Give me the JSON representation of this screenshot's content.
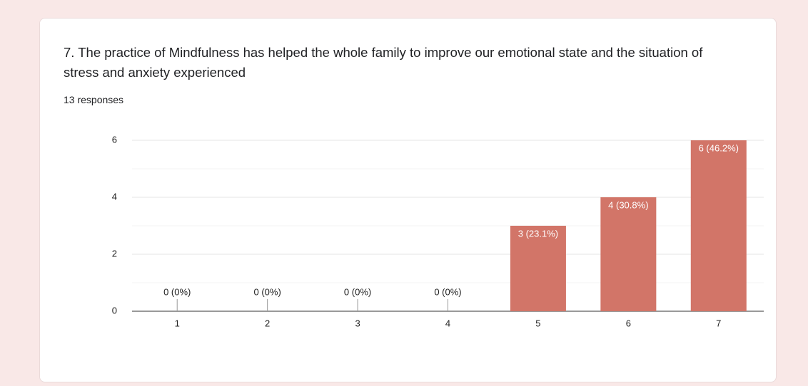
{
  "chart_data": {
    "type": "bar",
    "title": "7. The practice of Mindfulness has helped the whole family to improve our emotional state and the situation of stress and anxiety experienced",
    "subtitle": "13 responses",
    "categories": [
      "1",
      "2",
      "3",
      "4",
      "5",
      "6",
      "7"
    ],
    "values": [
      0,
      0,
      0,
      0,
      3,
      4,
      6
    ],
    "value_labels": [
      "0 (0%)",
      "0 (0%)",
      "0 (0%)",
      "0 (0%)",
      "3 (23.1%)",
      "4 (30.8%)",
      "6 (46.2%)"
    ],
    "color": "#d27568",
    "ylim": [
      0,
      6
    ],
    "yticks": [
      0,
      2,
      4,
      6
    ],
    "minor_yticks": [
      1,
      3,
      5
    ],
    "grid": true
  }
}
